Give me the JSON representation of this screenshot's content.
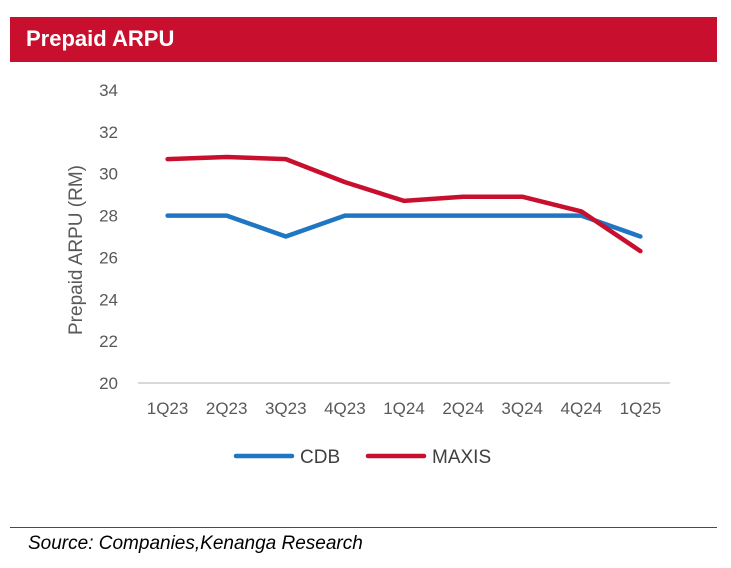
{
  "header": {
    "title": "Prepaid ARPU"
  },
  "footer": {
    "source": "Source:  Companies,Kenanga  Research"
  },
  "colors": {
    "title_bar": "#c8102e",
    "cdb": "#1f77c4",
    "maxis": "#c8102e",
    "axis": "#d9d9d9",
    "text": "#595959"
  },
  "chart_data": {
    "type": "line",
    "title": "Prepaid ARPU",
    "ylabel": "Prepaid  ARPU (RM)",
    "xlabel": "",
    "ylim": [
      20,
      34
    ],
    "yticks": [
      20,
      22,
      24,
      26,
      28,
      30,
      32,
      34
    ],
    "categories": [
      "1Q23",
      "2Q23",
      "3Q23",
      "4Q23",
      "1Q24",
      "2Q24",
      "3Q24",
      "4Q24",
      "1Q25"
    ],
    "series": [
      {
        "name": "CDB",
        "color": "#1f77c4",
        "values": [
          28,
          28,
          27,
          28,
          28,
          28,
          28,
          28,
          27
        ]
      },
      {
        "name": "MAXIS",
        "color": "#c8102e",
        "values": [
          30.7,
          30.8,
          30.7,
          29.6,
          28.7,
          28.9,
          28.9,
          28.2,
          26.3
        ]
      }
    ],
    "grid": false,
    "legend": "bottom"
  }
}
